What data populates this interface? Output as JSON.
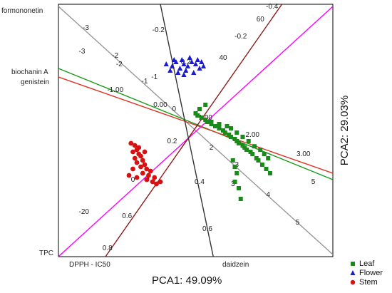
{
  "chart_data": {
    "type": "scatter",
    "title": "",
    "xlabel": "PCA1: 49.09%",
    "ylabel": "PCA2: 29.03%",
    "xlim": [
      -3.2,
      3.8
    ],
    "ylim": [
      -3.2,
      2.7
    ],
    "grid": false,
    "legend_position": "bottom-right",
    "series": [
      {
        "name": "Leaf",
        "marker": "square",
        "color": "#1a8a1a",
        "points": [
          [
            0.35,
            0.1
          ],
          [
            0.45,
            0.05
          ],
          [
            0.55,
            0.0
          ],
          [
            0.6,
            -0.05
          ],
          [
            0.7,
            -0.1
          ],
          [
            0.8,
            -0.15
          ],
          [
            0.9,
            -0.2
          ],
          [
            1.0,
            -0.25
          ],
          [
            1.05,
            -0.3
          ],
          [
            1.15,
            -0.35
          ],
          [
            1.2,
            -0.4
          ],
          [
            1.3,
            -0.45
          ],
          [
            1.35,
            -0.5
          ],
          [
            1.4,
            -0.55
          ],
          [
            1.5,
            -0.6
          ],
          [
            1.55,
            -0.65
          ],
          [
            1.6,
            -0.7
          ],
          [
            1.7,
            -0.75
          ],
          [
            1.75,
            -0.8
          ],
          [
            1.85,
            -0.9
          ],
          [
            1.9,
            -0.95
          ],
          [
            2.0,
            -1.05
          ],
          [
            2.1,
            -1.15
          ],
          [
            2.2,
            -1.25
          ],
          [
            1.2,
            -0.2
          ],
          [
            1.35,
            -0.3
          ],
          [
            1.5,
            -0.4
          ],
          [
            1.65,
            -0.5
          ],
          [
            1.8,
            -0.62
          ],
          [
            1.95,
            -0.7
          ],
          [
            2.05,
            -0.8
          ],
          [
            2.15,
            -0.9
          ],
          [
            1.25,
            -0.95
          ],
          [
            1.3,
            -1.1
          ],
          [
            1.35,
            -1.25
          ],
          [
            1.3,
            -1.45
          ],
          [
            1.4,
            -1.6
          ],
          [
            1.45,
            -1.85
          ],
          [
            0.55,
            0.35
          ],
          [
            0.4,
            0.25
          ],
          [
            0.3,
            0.15
          ],
          [
            0.7,
            -0.05
          ],
          [
            0.9,
            -0.1
          ],
          [
            1.1,
            -0.15
          ]
        ]
      },
      {
        "name": "Flower",
        "marker": "triangle",
        "color": "#1a1ad4",
        "points": [
          [
            -0.45,
            1.3
          ],
          [
            -0.3,
            1.25
          ],
          [
            -0.2,
            1.35
          ],
          [
            -0.1,
            1.2
          ],
          [
            0.0,
            1.3
          ],
          [
            0.1,
            1.25
          ],
          [
            0.2,
            1.35
          ],
          [
            0.3,
            1.3
          ],
          [
            0.4,
            1.2
          ],
          [
            0.45,
            1.35
          ],
          [
            -0.35,
            1.15
          ],
          [
            -0.15,
            1.1
          ],
          [
            0.05,
            1.15
          ],
          [
            0.25,
            1.1
          ],
          [
            0.35,
            1.4
          ],
          [
            0.15,
            1.45
          ],
          [
            -0.25,
            1.4
          ],
          [
            0.5,
            1.25
          ],
          [
            0.0,
            1.05
          ],
          [
            -0.05,
            1.4
          ]
        ]
      },
      {
        "name": "Stem",
        "marker": "circle",
        "color": "#d81010",
        "points": [
          [
            -1.35,
            -0.55
          ],
          [
            -1.25,
            -0.6
          ],
          [
            -1.2,
            -0.7
          ],
          [
            -1.3,
            -0.75
          ],
          [
            -1.15,
            -0.8
          ],
          [
            -1.1,
            -0.85
          ],
          [
            -1.25,
            -0.9
          ],
          [
            -1.05,
            -0.95
          ],
          [
            -1.2,
            -1.0
          ],
          [
            -1.0,
            -1.05
          ],
          [
            -1.1,
            -1.1
          ],
          [
            -0.95,
            -1.15
          ],
          [
            -0.85,
            -1.2
          ],
          [
            -1.05,
            -1.25
          ],
          [
            -0.9,
            -1.3
          ],
          [
            -0.75,
            -1.35
          ],
          [
            -0.95,
            -1.4
          ],
          [
            -0.8,
            -1.45
          ],
          [
            -0.7,
            -1.5
          ],
          [
            -1.3,
            -1.15
          ],
          [
            -1.4,
            -1.3
          ],
          [
            -1.2,
            -1.35
          ],
          [
            -0.6,
            -1.45
          ],
          [
            -1.15,
            -0.65
          ],
          [
            -1.0,
            -0.75
          ]
        ]
      }
    ],
    "loading_axes": [
      {
        "name": "formononetin",
        "color": "#999999",
        "from": [
          -3.2,
          2.65
        ],
        "to": [
          3.8,
          -3.15
        ],
        "ticks": [
          {
            "label": "-3",
            "at": [
              -2.5,
              2.1
            ]
          },
          {
            "label": "-2",
            "at": [
              -1.75,
              1.45
            ]
          },
          {
            "label": "-1",
            "at": [
              -1.0,
              0.85
            ]
          },
          {
            "label": "0",
            "at": [
              -0.25,
              0.2
            ]
          },
          {
            "label": "3",
            "at": [
              1.35,
              -1.1
            ]
          },
          {
            "label": "4",
            "at": [
              2.15,
              -1.8
            ]
          },
          {
            "label": "5",
            "at": [
              2.9,
              -2.45
            ]
          }
        ]
      },
      {
        "name": "biochanin A",
        "color": "#1a9a1a",
        "from": [
          -3.2,
          1.2
        ],
        "to": [
          3.8,
          -1.4
        ],
        "ticks": []
      },
      {
        "name": "genistein",
        "color": "#e03020",
        "from": [
          -3.2,
          1.0
        ],
        "to": [
          3.8,
          -1.25
        ],
        "ticks": [
          {
            "label": "-1.00",
            "at": [
              -1.75,
              0.65
            ]
          },
          {
            "label": "0.00",
            "at": [
              -0.6,
              0.3
            ]
          },
          {
            "label": "1.00",
            "at": [
              0.55,
              0.0
            ]
          },
          {
            "label": "2.00",
            "at": [
              1.75,
              -0.4
            ]
          },
          {
            "label": "3.00",
            "at": [
              3.05,
              -0.85
            ]
          }
        ]
      },
      {
        "name": "TPC",
        "color": "#ff00ff",
        "from": [
          -3.2,
          -3.2
        ],
        "to": [
          3.8,
          2.65
        ],
        "ticks": [
          {
            "label": "-3",
            "at": [
              -2.6,
              1.55
            ]
          },
          {
            "label": "-2",
            "at": [
              -1.65,
              1.25
            ]
          },
          {
            "label": "-1",
            "at": [
              -0.75,
              0.95
            ]
          },
          {
            "label": "0",
            "at": [
              -1.3,
              -1.45
            ]
          },
          {
            "label": "-20",
            "at": [
              -2.55,
              -2.2
            ]
          },
          {
            "label": "40",
            "at": [
              1.0,
              1.4
            ]
          },
          {
            "label": "60",
            "at": [
              1.95,
              2.3
            ]
          },
          {
            "label": "5",
            "at": [
              3.3,
              -1.5
            ]
          }
        ]
      },
      {
        "name": "DPPH - IC50",
        "color": "#8b1a1a",
        "from": [
          -2.0,
          -3.2
        ],
        "to": [
          2.5,
          2.7
        ],
        "ticks": [
          {
            "label": "0.8",
            "at": [
              -1.95,
              -3.05
            ]
          },
          {
            "label": "0.6",
            "at": [
              -1.45,
              -2.3
            ]
          },
          {
            "label": "0.4",
            "at": [
              -0.85,
              -1.45
            ]
          },
          {
            "label": "0.2",
            "at": [
              -0.3,
              -0.55
            ]
          },
          {
            "label": "-0.2",
            "at": [
              1.45,
              1.9
            ]
          },
          {
            "label": "-0.4",
            "at": [
              2.25,
              2.6
            ]
          }
        ]
      },
      {
        "name": "daidzein",
        "color": "#333333",
        "from": [
          -0.6,
          2.7
        ],
        "to": [
          0.75,
          -3.2
        ],
        "ticks": [
          {
            "label": "-0.2",
            "at": [
              -0.65,
              2.05
            ]
          },
          {
            "label": "0.2",
            "at": [
              0.05,
              1.3
            ]
          },
          {
            "label": "0.4",
            "at": [
              0.4,
              -1.5
            ]
          },
          {
            "label": "0.6",
            "at": [
              0.6,
              -2.6
            ]
          },
          {
            "label": "2",
            "at": [
              0.7,
              -0.7
            ]
          },
          {
            "label": "3",
            "at": [
              1.25,
              -1.55
            ]
          }
        ]
      }
    ],
    "side_labels": [
      {
        "text": "formononetin",
        "anchor": "top-left"
      },
      {
        "text": "biochanin A",
        "anchor": "left"
      },
      {
        "text": "genistein",
        "anchor": "left"
      },
      {
        "text": "TPC",
        "anchor": "bottom-left"
      },
      {
        "text": "DPPH - IC50",
        "anchor": "bottom"
      },
      {
        "text": "daidzein",
        "anchor": "bottom"
      }
    ]
  }
}
